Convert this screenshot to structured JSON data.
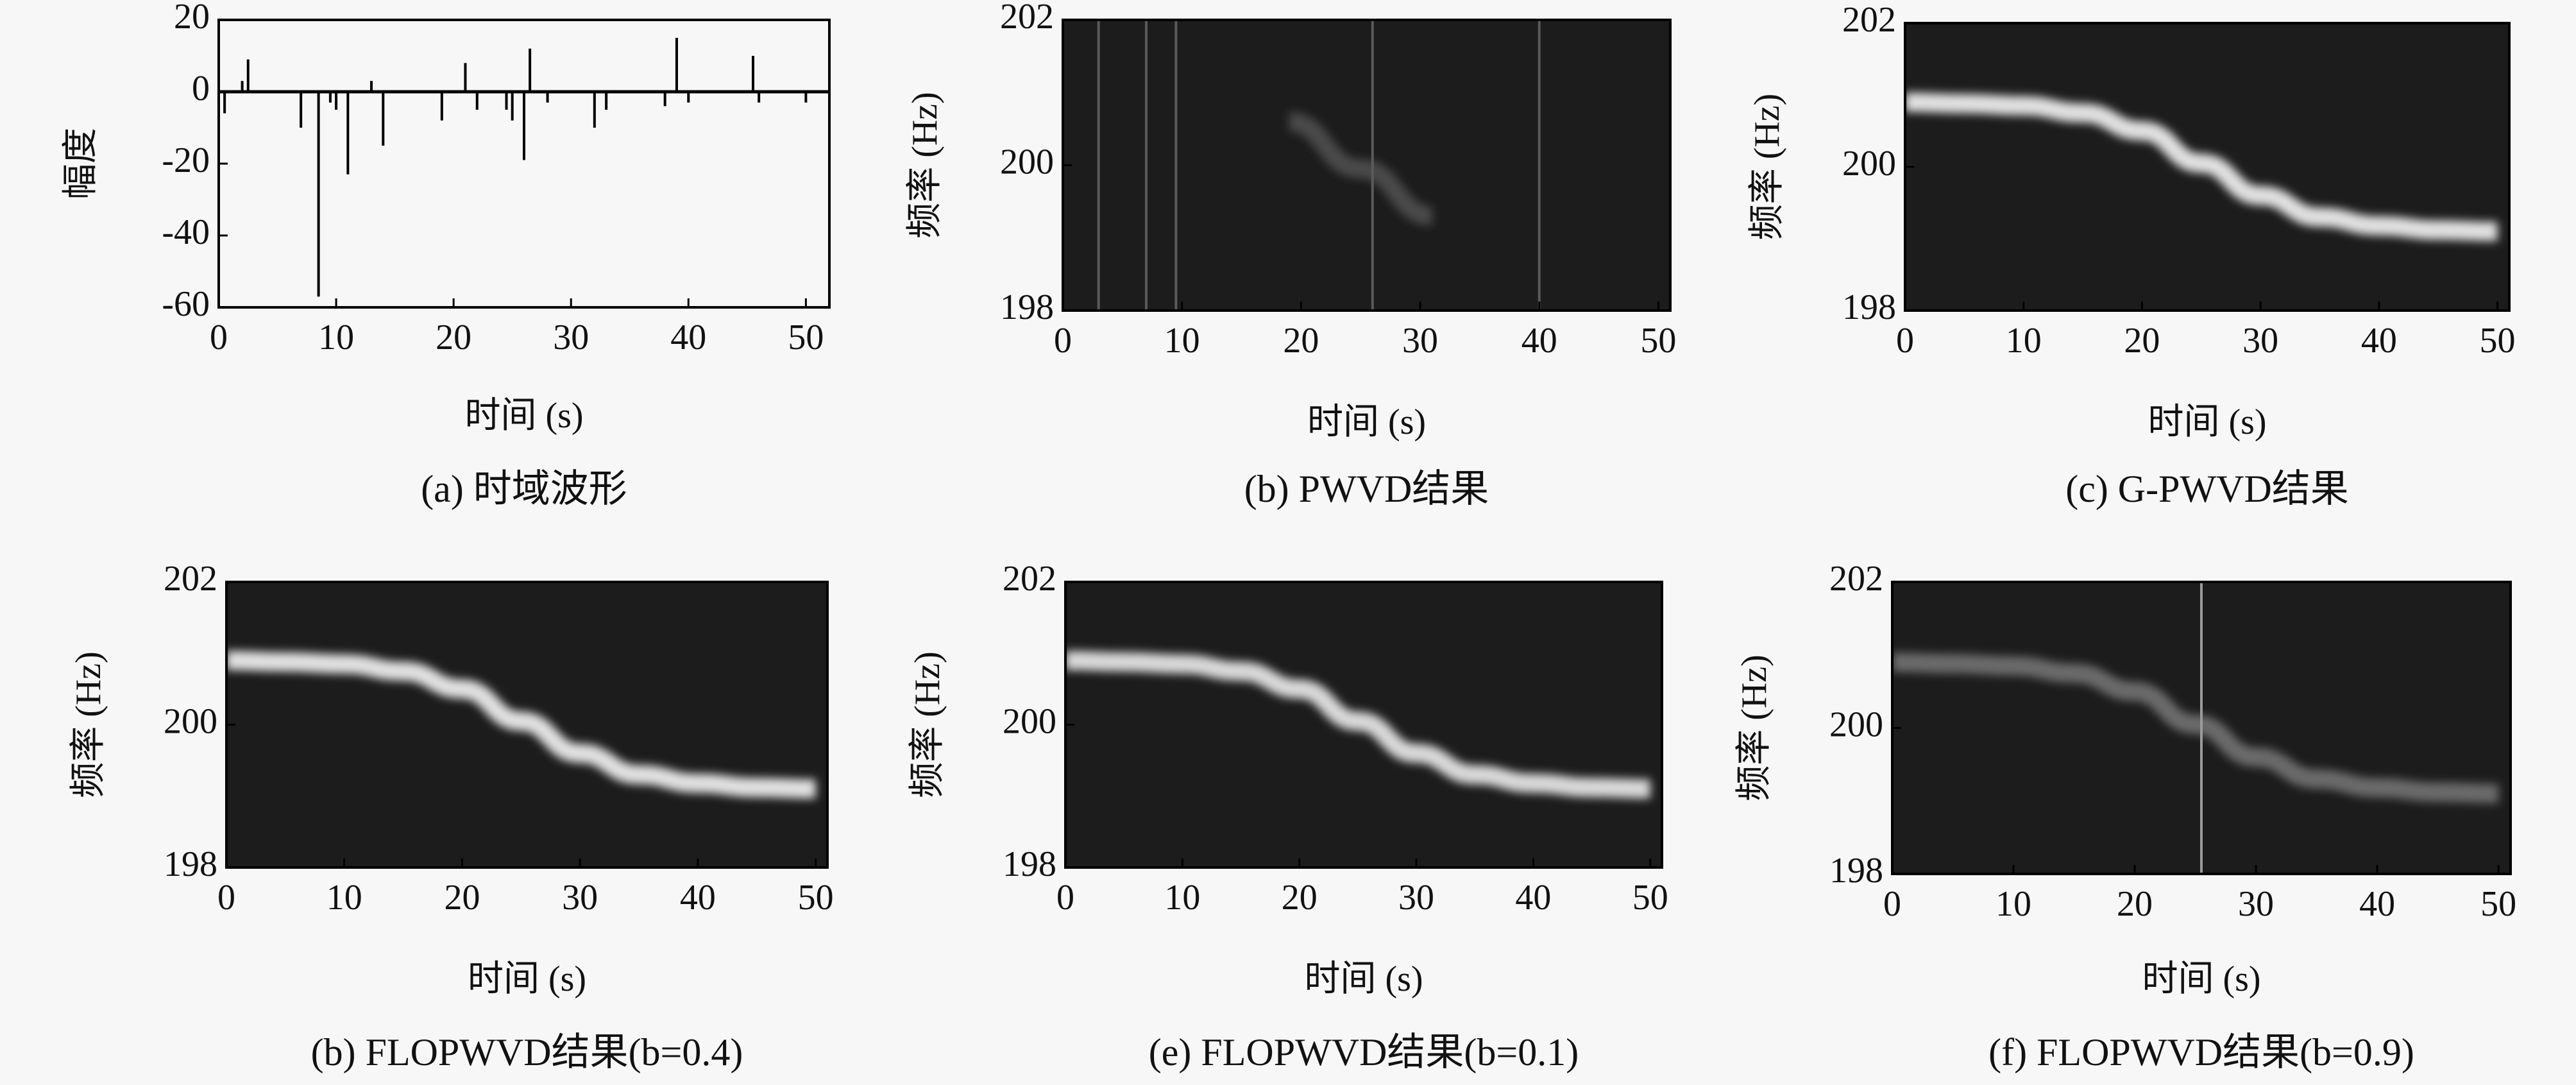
{
  "chart_data": [
    {
      "type": "stem",
      "caption": "(a) 时域波形",
      "xlabel": "时间 (s)",
      "ylabel": "幅度",
      "color": "#000000",
      "x": [
        0.5,
        2,
        2.5,
        7,
        8.5,
        9.5,
        10,
        11,
        13,
        14,
        19,
        21,
        22,
        24.5,
        25,
        26,
        26.5,
        28,
        32,
        33,
        38,
        39,
        40,
        45.5,
        46,
        50
      ],
      "values": [
        -6,
        3,
        9,
        -10,
        -57,
        -3,
        -5,
        -23,
        3,
        -15,
        -8,
        8,
        -5,
        -5,
        -8,
        -19,
        12,
        -3,
        -10,
        -5,
        -4,
        15,
        -3,
        10,
        -3,
        -3
      ],
      "xlim": [
        0,
        52
      ],
      "ylim": [
        -60,
        20
      ],
      "xticks": [
        0,
        10,
        20,
        30,
        40,
        50
      ],
      "yticks": [
        -60,
        -40,
        -20,
        0,
        20
      ]
    },
    {
      "type": "spectrogram",
      "caption": "(b) PWVD结果",
      "xlabel": "时间 (s)",
      "ylabel": "频率 (Hz)",
      "background": "#1c1c1c",
      "series": [
        {
          "color": "#4a4a4a",
          "x": [
            19,
            25,
            31
          ],
          "values": [
            200.6,
            199.95,
            199.3
          ]
        }
      ],
      "impulses": {
        "color": "#5a5a5a",
        "x": [
          3,
          7,
          9.5,
          26,
          40
        ]
      },
      "xlim": [
        0,
        51
      ],
      "ylim": [
        198,
        202
      ],
      "xticks": [
        0,
        10,
        20,
        30,
        40,
        50
      ],
      "yticks": [
        198,
        200,
        202
      ]
    },
    {
      "type": "spectrogram",
      "caption": "(c) G-PWVD结果",
      "xlabel": "时间 (s)",
      "ylabel": "频率 (Hz)",
      "background": "#1c1c1c",
      "series": [
        {
          "color": "#e0e0e0",
          "x": [
            0,
            5,
            10,
            15,
            20,
            25,
            30,
            35,
            40,
            45,
            50
          ],
          "values": [
            200.9,
            200.88,
            200.85,
            200.75,
            200.5,
            200.05,
            199.6,
            199.3,
            199.18,
            199.12,
            199.1
          ]
        }
      ],
      "xlim": [
        0,
        51
      ],
      "ylim": [
        198,
        202
      ],
      "xticks": [
        0,
        10,
        20,
        30,
        40,
        50
      ],
      "yticks": [
        198,
        200,
        202
      ]
    },
    {
      "type": "spectrogram",
      "caption": "(b) FLOPWVD结果(b=0.4)",
      "xlabel": "时间 (s)",
      "ylabel": "频率 (Hz)",
      "background": "#1c1c1c",
      "series": [
        {
          "color": "#e0e0e0",
          "x": [
            0,
            5,
            10,
            15,
            20,
            25,
            30,
            35,
            40,
            45,
            50
          ],
          "values": [
            200.9,
            200.88,
            200.85,
            200.75,
            200.5,
            200.05,
            199.6,
            199.3,
            199.18,
            199.12,
            199.1
          ]
        }
      ],
      "xlim": [
        0,
        51
      ],
      "ylim": [
        198,
        202
      ],
      "xticks": [
        0,
        10,
        20,
        30,
        40,
        50
      ],
      "yticks": [
        198,
        200,
        202
      ]
    },
    {
      "type": "spectrogram",
      "caption": "(e) FLOPWVD结果(b=0.1)",
      "xlabel": "时间 (s)",
      "ylabel": "频率 (Hz)",
      "background": "#1c1c1c",
      "series": [
        {
          "color": "#d8d8d8",
          "x": [
            0,
            5,
            10,
            15,
            20,
            25,
            30,
            35,
            40,
            45,
            50
          ],
          "values": [
            200.9,
            200.88,
            200.85,
            200.75,
            200.5,
            200.05,
            199.6,
            199.3,
            199.18,
            199.12,
            199.1
          ]
        }
      ],
      "xlim": [
        0,
        51
      ],
      "ylim": [
        198,
        202
      ],
      "xticks": [
        0,
        10,
        20,
        30,
        40,
        50
      ],
      "yticks": [
        198,
        200,
        202
      ]
    },
    {
      "type": "spectrogram",
      "caption": "(f) FLOPWVD结果(b=0.9)",
      "xlabel": "时间 (s)",
      "ylabel": "频率 (Hz)",
      "background": "#1c1c1c",
      "series": [
        {
          "color": "#6a6a6a",
          "x": [
            0,
            5,
            10,
            15,
            20,
            25,
            30,
            35,
            40,
            45,
            50
          ],
          "values": [
            200.9,
            200.88,
            200.85,
            200.75,
            200.5,
            200.05,
            199.6,
            199.3,
            199.18,
            199.12,
            199.1
          ]
        }
      ],
      "impulses": {
        "color": "#9a9a9a",
        "x": [
          25.5
        ]
      },
      "xlim": [
        0,
        51
      ],
      "ylim": [
        198,
        202
      ],
      "xticks": [
        0,
        10,
        20,
        30,
        40,
        50
      ],
      "yticks": [
        198,
        200,
        202
      ]
    }
  ]
}
